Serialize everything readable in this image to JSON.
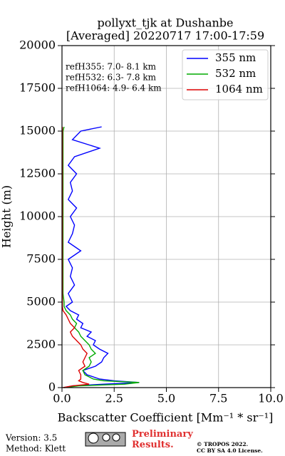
{
  "chart_data": {
    "type": "line",
    "title": "pollyxt_tjk at Dushanbe",
    "subtitle": "[Averaged] 20220717 17:00-17:59",
    "x_label": "Backscatter Coefficient [Mm⁻¹ * sr⁻¹]",
    "y_label": "Height (m)",
    "annotations": [
      "refH355:  7.0- 8.1 km",
      "refH532:  6.3- 7.8 km",
      "refH1064:  4.9- 6.4 km"
    ],
    "heights": [
      0,
      100,
      200,
      300,
      400,
      500,
      750,
      1000,
      1250,
      1500,
      1750,
      2000,
      2250,
      2500,
      2750,
      3000,
      3250,
      3500,
      3750,
      4000,
      4250,
      4500,
      4750,
      5000,
      5500,
      6000,
      6500,
      7000,
      7500,
      8000,
      8500,
      9000,
      9500,
      10000,
      10500,
      11000,
      11500,
      12000,
      12500,
      13000,
      13500,
      14000,
      14500,
      15000,
      15250
    ],
    "series": [
      {
        "name": "355 nm",
        "color": "#0000ff",
        "values": [
          0.1,
          0.5,
          2.0,
          3.7,
          2.5,
          1.8,
          1.2,
          1.0,
          1.6,
          1.9,
          2.0,
          2.2,
          1.8,
          1.5,
          1.6,
          1.2,
          1.4,
          0.9,
          1.0,
          0.7,
          0.8,
          0.4,
          0.2,
          0.5,
          0.3,
          0.6,
          0.4,
          0.5,
          0.3,
          0.9,
          0.3,
          0.5,
          0.6,
          0.4,
          0.7,
          0.3,
          0.5,
          0.4,
          0.7,
          0.3,
          0.6,
          1.8,
          0.5,
          0.9,
          1.9
        ]
      },
      {
        "name": "532 nm",
        "color": "#00aa00",
        "values": [
          0.1,
          0.8,
          3.0,
          3.7,
          2.0,
          1.5,
          1.1,
          1.0,
          1.3,
          1.4,
          1.3,
          1.6,
          1.4,
          1.3,
          1.1,
          0.9,
          0.8,
          0.6,
          0.7,
          0.5,
          0.4,
          0.2,
          0.1,
          0.1,
          0.05,
          0.05,
          0.05,
          0.05,
          0.05,
          0.05,
          0.05,
          0.05,
          0.05,
          0.05,
          0.05,
          0.05,
          0.05,
          0.05,
          0.05,
          0.05,
          0.05,
          0.05,
          0.05,
          0.05,
          0.1
        ]
      },
      {
        "name": "1064 nm",
        "color": "#dd0000",
        "values": [
          0.05,
          0.5,
          1.3,
          1.0,
          0.8,
          0.9,
          0.9,
          0.8,
          1.1,
          1.0,
          1.1,
          1.2,
          1.0,
          0.9,
          0.7,
          0.5,
          0.4,
          0.6,
          0.4,
          0.3,
          0.2,
          0.05,
          0.02,
          0.02,
          0.02,
          0.02,
          0.02,
          0.02,
          0.02,
          0.02,
          0.02,
          0.02,
          0.02,
          0.02,
          0.02,
          0.02,
          0.02,
          0.02,
          0.02,
          0.02,
          0.02,
          0.02,
          0.02,
          0.02,
          0.02
        ]
      }
    ],
    "xlim": [
      0,
      10
    ],
    "xticks": [
      {
        "value": 0,
        "label": "0.0"
      },
      {
        "value": 2.5,
        "label": "2.5"
      },
      {
        "value": 5,
        "label": "5.0"
      },
      {
        "value": 7.5,
        "label": "7.5"
      },
      {
        "value": 10,
        "label": "10.0"
      }
    ],
    "ylim": [
      0,
      20000
    ],
    "yticks": [
      0,
      2500,
      5000,
      7500,
      10000,
      12500,
      15000,
      17500,
      20000
    ],
    "grid": true,
    "legend": "upper right"
  },
  "footer": {
    "version": "Version: 3.5",
    "method": "Method: Klett",
    "notice": "Preliminary Results.",
    "copyright": "© TROPOS 2022.",
    "license": "CC BY SA 4.0 License."
  }
}
